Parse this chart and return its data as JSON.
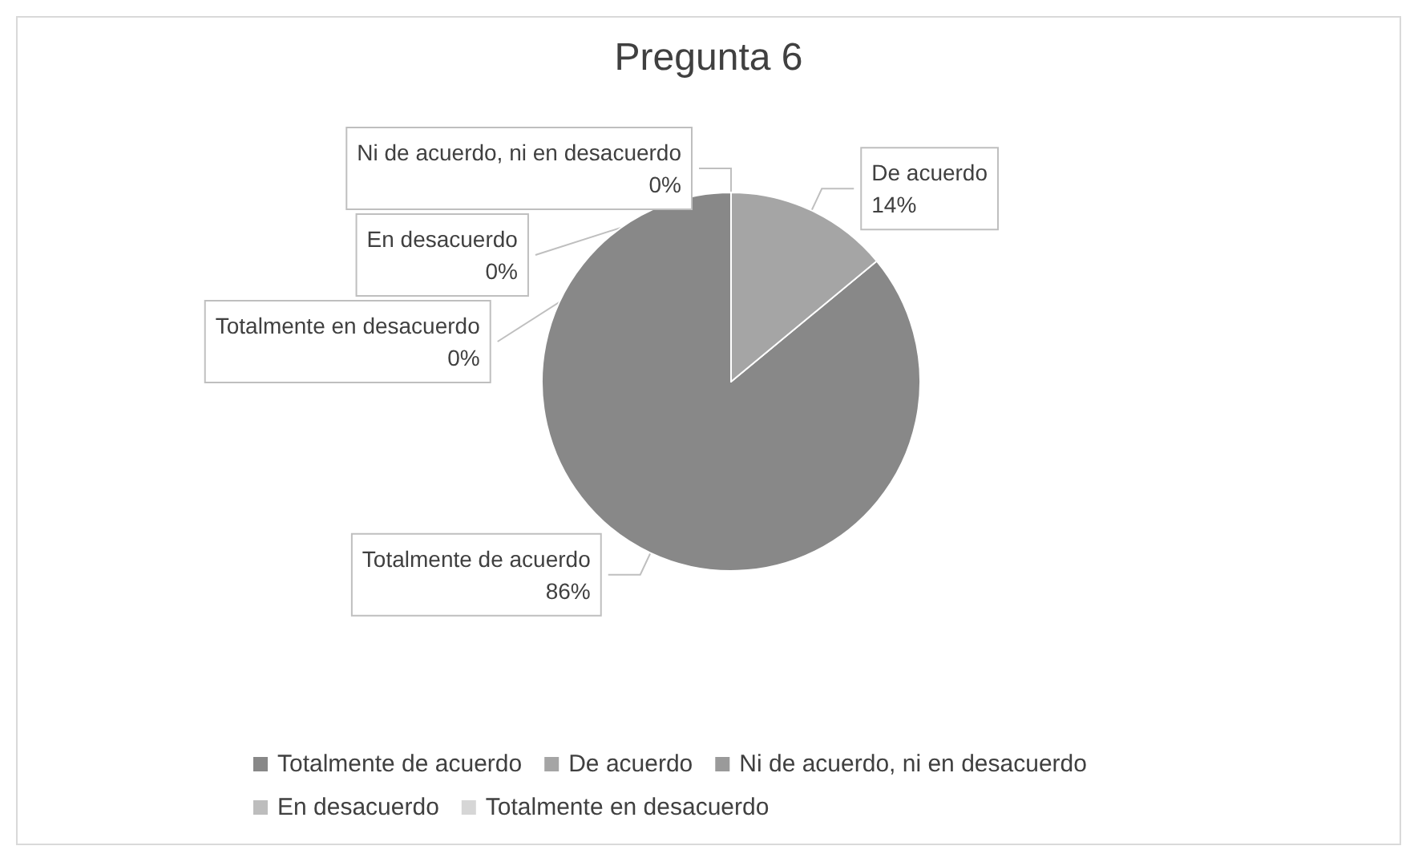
{
  "chart_data": {
    "type": "pie",
    "title": "Pregunta 6",
    "categories": [
      "Totalmente de acuerdo",
      "De acuerdo",
      "Ni de acuerdo, ni en desacuerdo",
      "En desacuerdo",
      "Totalmente en desacuerdo"
    ],
    "values": [
      86,
      14,
      0,
      0,
      0
    ],
    "colors": [
      "#888888",
      "#a5a5a5",
      "#9a9a9a",
      "#bdbdbd",
      "#d6d6d6"
    ],
    "value_labels": [
      "86%",
      "14%",
      "0%",
      "0%",
      "0%"
    ],
    "legend": "bottom"
  }
}
